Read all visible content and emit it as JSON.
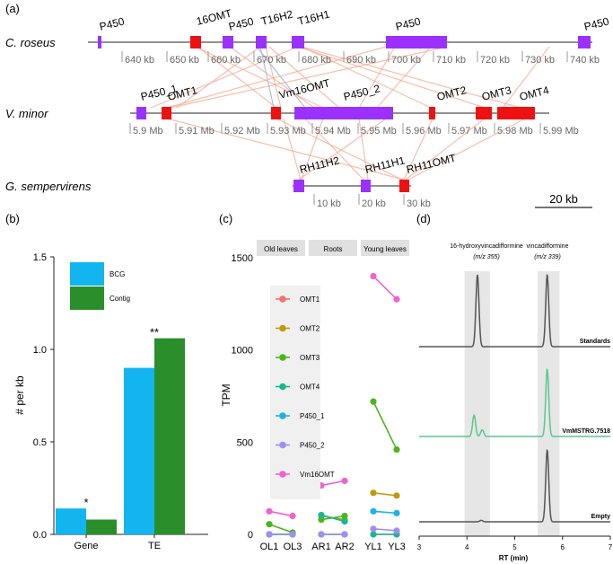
{
  "panel_a": {
    "label": "(a)",
    "scale_bar": "20 kb",
    "tracks": [
      {
        "species": "C. roseus",
        "ticks": [
          "640 kb",
          "650 kb",
          "660 kb",
          "670 kb",
          "680 kb",
          "690 kb",
          "700 kb",
          "710 kb",
          "720 kb",
          "730 kb",
          "740 kb"
        ],
        "genes": [
          {
            "name": "P450",
            "type": "P450"
          },
          {
            "name": "16OMT",
            "type": "OMT"
          },
          {
            "name": "P450",
            "type": "P450"
          },
          {
            "name": "T16H2",
            "type": "P450"
          },
          {
            "name": "T16H1",
            "type": "P450"
          },
          {
            "name": "P450",
            "type": "P450"
          },
          {
            "name": "P450",
            "type": "P450"
          }
        ]
      },
      {
        "species": "V. minor",
        "ticks": [
          "5.9 Mb",
          "5.91 Mb",
          "5.92 Mb",
          "5.93 Mb",
          "5.94 Mb",
          "5.95 Mb",
          "5.96 Mb",
          "5.97 Mb",
          "5.98 Mb",
          "5.99 Mb"
        ],
        "genes": [
          {
            "name": "P450_1",
            "type": "P450"
          },
          {
            "name": "OMT1",
            "type": "OMT"
          },
          {
            "name": "Vm16OMT",
            "type": "OMT"
          },
          {
            "name": "P450_2",
            "type": "P450"
          },
          {
            "name": "OMT2",
            "type": "OMT"
          },
          {
            "name": "OMT3",
            "type": "OMT"
          },
          {
            "name": "OMT4",
            "type": "OMT"
          }
        ]
      },
      {
        "species": "G. sempervirens",
        "ticks": [
          "10 kb",
          "20 kb",
          "30 kb"
        ],
        "genes": [
          {
            "name": "RH11H2",
            "type": "P450"
          },
          {
            "name": "RH11H1",
            "type": "P450"
          },
          {
            "name": "RH11OMT",
            "type": "OMT"
          }
        ]
      }
    ],
    "colors": {
      "P450": "#9b30ff",
      "OMT": "#ee1111",
      "synteny": "#f4a890",
      "synteny_blue": "#a9bfe0"
    }
  },
  "panel_b": {
    "label": "(b)",
    "chart_data": {
      "type": "bar",
      "title": "",
      "xlabel": "",
      "ylabel": "# per kb",
      "categories": [
        "Gene",
        "TE"
      ],
      "series": [
        {
          "name": "BCG",
          "color": "#12b5ef",
          "values": [
            0.14,
            0.9
          ]
        },
        {
          "name": "Contig",
          "color": "#2a8f2a",
          "values": [
            0.08,
            1.06
          ]
        }
      ],
      "annotations": [
        "*",
        "**"
      ],
      "ylim": [
        0,
        1.5
      ],
      "yticks": [
        "0.0",
        "0.5",
        "1.0",
        "1.5"
      ],
      "legend": "top-left"
    }
  },
  "panel_c": {
    "label": "(c)",
    "chart_data": {
      "type": "line",
      "ylabel": "TPM",
      "ylim": [
        0,
        1500
      ],
      "yticks": [
        "0",
        "500",
        "1000",
        "1500"
      ],
      "facets": [
        {
          "title": "Old leaves",
          "x": [
            "OL1",
            "OL3"
          ]
        },
        {
          "title": "Roots",
          "x": [
            "AR1",
            "AR2"
          ]
        },
        {
          "title": "Young leaves",
          "x": [
            "YL1",
            "YL3"
          ]
        }
      ],
      "series": [
        {
          "name": "OMT1",
          "color": "#f0746c",
          "values": [
            [
              0,
              0
            ],
            [
              0,
              0
            ],
            [
              0,
              0
            ]
          ]
        },
        {
          "name": "OMT2",
          "color": "#bf9a10",
          "values": [
            [
              0,
              0
            ],
            [
              100,
              80
            ],
            [
              225,
              210
            ]
          ]
        },
        {
          "name": "OMT3",
          "color": "#4cb51a",
          "values": [
            [
              55,
              10
            ],
            [
              80,
              100
            ],
            [
              720,
              460
            ]
          ]
        },
        {
          "name": "OMT4",
          "color": "#17b890",
          "values": [
            [
              0,
              0
            ],
            [
              105,
              70
            ],
            [
              0,
              0
            ]
          ]
        },
        {
          "name": "P450_1",
          "color": "#1ab3e6",
          "values": [
            [
              0,
              0
            ],
            [
              0,
              0
            ],
            [
              125,
              115
            ]
          ]
        },
        {
          "name": "P450_2",
          "color": "#9f8ff0",
          "values": [
            [
              0,
              0
            ],
            [
              0,
              0
            ],
            [
              30,
              20
            ]
          ]
        },
        {
          "name": "Vm16OMT",
          "color": "#ef63cf",
          "values": [
            [
              125,
              100
            ],
            [
              265,
              290
            ],
            [
              1400,
              1275
            ]
          ]
        }
      ]
    }
  },
  "panel_d": {
    "label": "(d)",
    "chart_data": {
      "type": "line",
      "xlabel": "RT (min)",
      "xlim": [
        3,
        7
      ],
      "xticks": [
        "3",
        "4",
        "5",
        "6",
        "7"
      ],
      "peak_labels": [
        {
          "name": "16-hydroxyvincadifformine",
          "mz": "(m/z 355)",
          "rt": 4.2
        },
        {
          "name": "vincadifformine",
          "mz": "(m/z 339)",
          "rt": 5.68
        }
      ],
      "series": [
        {
          "name": "Standards",
          "color": "#555555",
          "peaks": [
            [
              4.22,
              1.0
            ],
            [
              5.68,
              1.0
            ]
          ]
        },
        {
          "name": "VmMSTRG.7518",
          "color": "#56c98d",
          "peaks": [
            [
              4.15,
              0.32
            ],
            [
              4.32,
              0.1
            ],
            [
              5.68,
              1.0
            ]
          ]
        },
        {
          "name": "Empty",
          "color": "#555555",
          "peaks": [
            [
              4.3,
              0.02
            ],
            [
              5.68,
              1.0
            ]
          ]
        }
      ]
    }
  }
}
